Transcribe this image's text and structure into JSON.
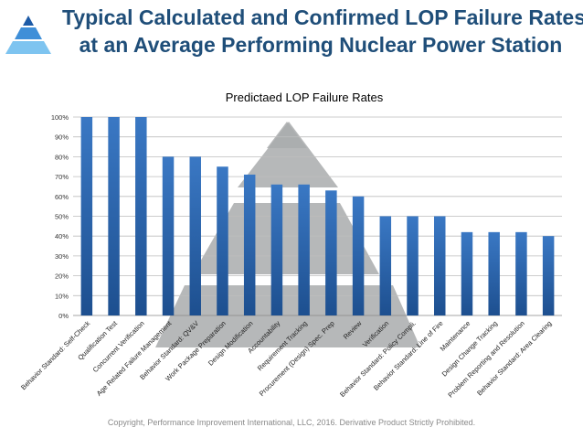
{
  "slide": {
    "title_line1": "Typical Calculated and Confirmed LOP Failure Rates",
    "title_line2": "at an Average Performing Nuclear Power Station",
    "footer": "Copyright, Performance Improvement International, LLC, 2016. Derivative Product Strictly Prohibited.",
    "logo_icon": "pyramid-logo-icon",
    "colors": {
      "title": "#1f4e79",
      "bar": "#3a78c4",
      "bar_dark": "#1d4f8f",
      "watermark": "#a9abad",
      "logo_top": "#1c5aa6",
      "logo_mid": "#3f8fd8",
      "logo_bottom": "#7ec4f0"
    }
  },
  "chart_data": {
    "type": "bar",
    "title": "Predictaed LOP Failure Rates",
    "categories": [
      "Behavior Standard: Self-Check",
      "Qualification Test",
      "Concurrent Verification",
      "Age Related Failure Management",
      "Behavior Standard: QV&V",
      "Work Package Preparation",
      "Design Modification",
      "Accountability",
      "Requirement Tracking",
      "Procurement (Design) Spec. Prep",
      "Review",
      "Verification",
      "Behavior Standard: Policy Compli.",
      "Behavior Standard: Line of Fire",
      "Maintenance",
      "Design Change Tracking",
      "Problem Reporting and Resolution",
      "Behavior Standard: Area Clearing"
    ],
    "values": [
      100,
      100,
      100,
      80,
      80,
      75,
      71,
      66,
      66,
      63,
      60,
      50,
      50,
      50,
      42,
      42,
      42,
      40
    ],
    "ylim": [
      0,
      100
    ],
    "yticks": [
      "0%",
      "10%",
      "20%",
      "30%",
      "40%",
      "50%",
      "60%",
      "70%",
      "80%",
      "90%",
      "100%"
    ],
    "xlabel": "",
    "ylabel": "",
    "grid": true,
    "legend": "none"
  }
}
